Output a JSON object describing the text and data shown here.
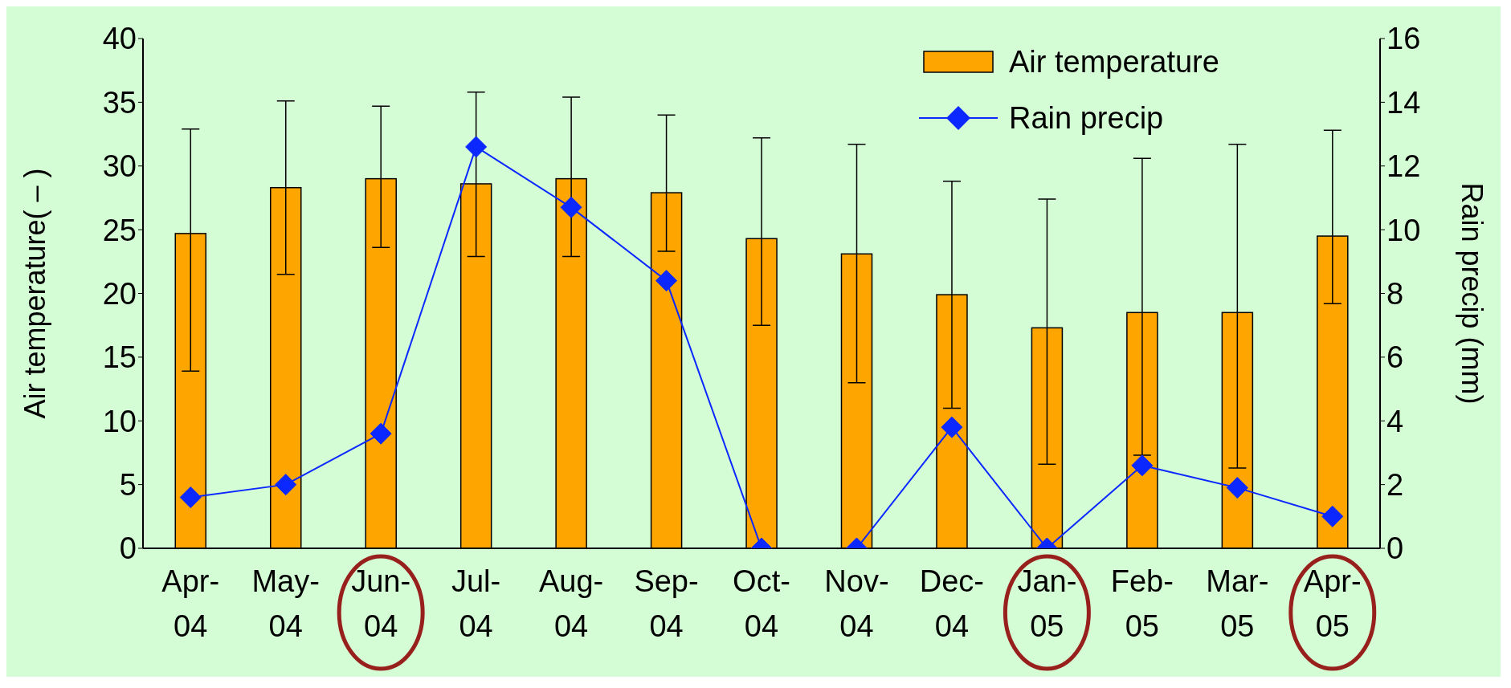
{
  "chart_data": {
    "type": "bar",
    "ylabel": "Air temperature(   –  )",
    "y2label": "Rain precip (mm)",
    "categories": [
      "Apr-04",
      "May-04",
      "Jun-04",
      "Jul-04",
      "Aug-04",
      "Sep-04",
      "Oct-04",
      "Nov-04",
      "Dec-04",
      "Jan-05",
      "Feb-05",
      "Mar-05",
      "Apr-05"
    ],
    "series": [
      {
        "name": "Air temperature",
        "color": "#ffa500",
        "values": [
          24.7,
          28.3,
          29.0,
          28.6,
          29.0,
          27.9,
          24.3,
          23.1,
          19.9,
          17.3,
          18.5,
          18.5,
          24.5
        ],
        "errors": [
          [
            13.9,
            32.9
          ],
          [
            21.5,
            35.1
          ],
          [
            23.6,
            34.7
          ],
          [
            22.9,
            35.8
          ],
          [
            22.9,
            35.4
          ],
          [
            23.3,
            34.0
          ],
          [
            17.5,
            32.2
          ],
          [
            13.0,
            31.7
          ],
          8.9,
          [
            6.6,
            27.4
          ],
          [
            7.3,
            30.6
          ],
          [
            6.3,
            31.7
          ],
          [
            19.2,
            32.8
          ]
        ]
      },
      {
        "name": "Rain precip",
        "type": "line",
        "axis": "y2",
        "color": "#0a28ff",
        "marker": "diamond",
        "line_style": "solid",
        "values": [
          1.6,
          2.0,
          3.6,
          12.6,
          10.7,
          8.4,
          0,
          0,
          3.8,
          0,
          2.6,
          1.9,
          1.0
        ]
      }
    ],
    "ylim": [
      0,
      40
    ],
    "yticks": [
      0,
      5,
      10,
      15,
      20,
      25,
      30,
      35,
      40
    ],
    "y2lim": [
      0,
      16
    ],
    "y2ticks": [
      0,
      2,
      4,
      6,
      8,
      10,
      12,
      14,
      16
    ],
    "grid": false,
    "legend": "top right"
  }
}
